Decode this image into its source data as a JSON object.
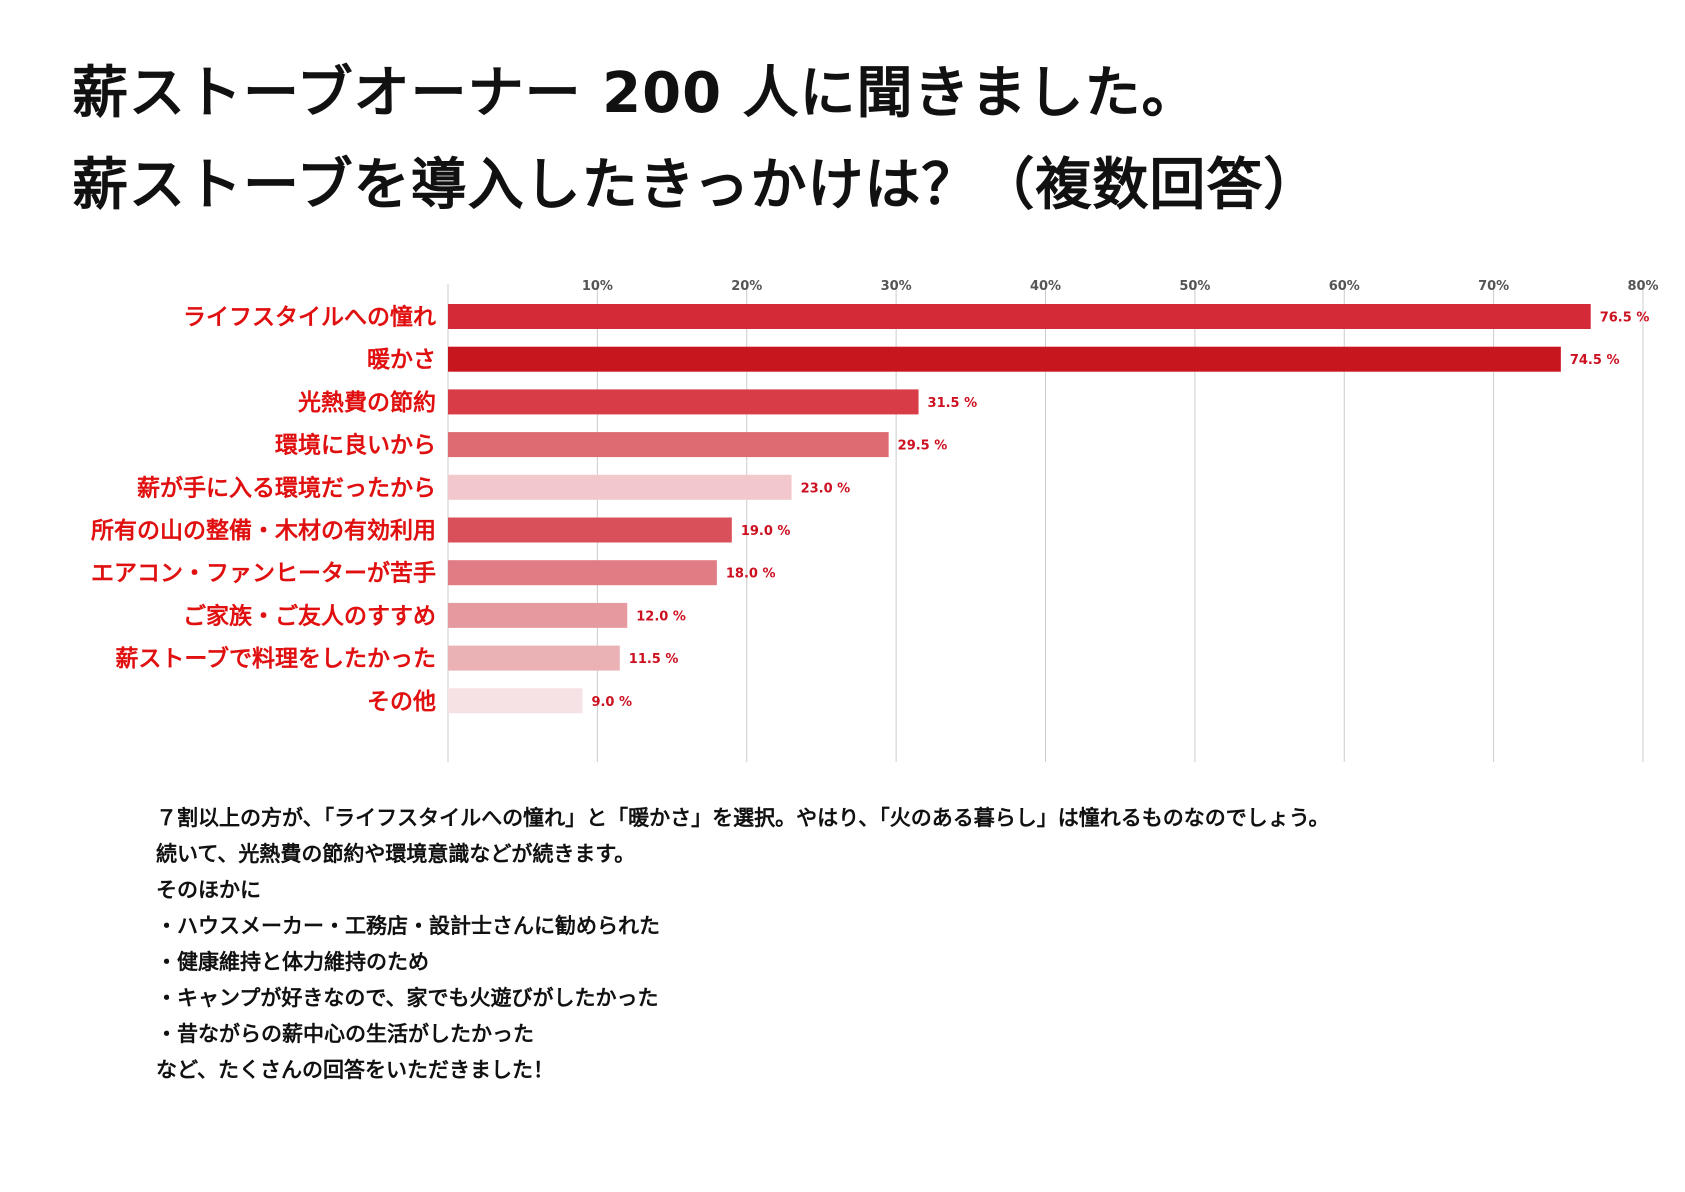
{
  "title": {
    "line1": "薪ストーブオーナー 200 人に聞きました。",
    "line2": "薪ストーブを導入したきっかけは？（複数回答）"
  },
  "chart_data": {
    "type": "bar",
    "orientation": "horizontal",
    "categories": [
      "ライフスタイルへの憧れ",
      "暖かさ",
      "光熱費の節約",
      "環境に良いから",
      "薪が手に入る環境だったから",
      "所有の山の整備・木材の有効利用",
      "エアコン・ファンヒーターが苦手",
      "ご家族・ご友人のすすめ",
      "薪ストーブで料理をしたかった",
      "その他"
    ],
    "values": [
      76.5,
      74.5,
      31.5,
      29.5,
      23.0,
      19.0,
      18.0,
      12.0,
      11.5,
      9.0
    ],
    "value_labels": [
      "76.5 %",
      "74.5 %",
      "31.5 %",
      "29.5 %",
      "23.0 %",
      "19.0 %",
      "18.0 %",
      "12.0 %",
      "11.5 %",
      "9.0 %"
    ],
    "bar_colors": [
      "#d42a38",
      "#c8161e",
      "#d83c46",
      "#de6a72",
      "#f2c8cc",
      "#d9505a",
      "#e07c84",
      "#e69aa0",
      "#ebb2b6",
      "#f6e2e4"
    ],
    "xlim": [
      0,
      80
    ],
    "xticks": [
      10,
      20,
      30,
      40,
      50,
      60,
      70,
      80
    ],
    "xtick_labels": [
      "10%",
      "20%",
      "30%",
      "40%",
      "50%",
      "60%",
      "70%",
      "80%"
    ],
    "xaxis_position": "top",
    "grid": true,
    "label_color": "#e01010",
    "value_label_color": "#cc1020",
    "grid_color": "#cccccc"
  },
  "description": [
    "７割以上の方が、「ライフスタイルへの憧れ」と「暖かさ」を選択。やはり、「火のある暮らし」は憧れるものなのでしょう。",
    "続いて、光熱費の節約や環境意識などが続きます。",
    "そのほかに",
    "・ハウスメーカー・工務店・設計士さんに勧められた",
    "・健康維持と体力維持のため",
    "・キャンプが好きなので、家でも火遊びがしたかった",
    "・昔ながらの薪中心の生活がしたかった",
    "など、たくさんの回答をいただきました！"
  ]
}
